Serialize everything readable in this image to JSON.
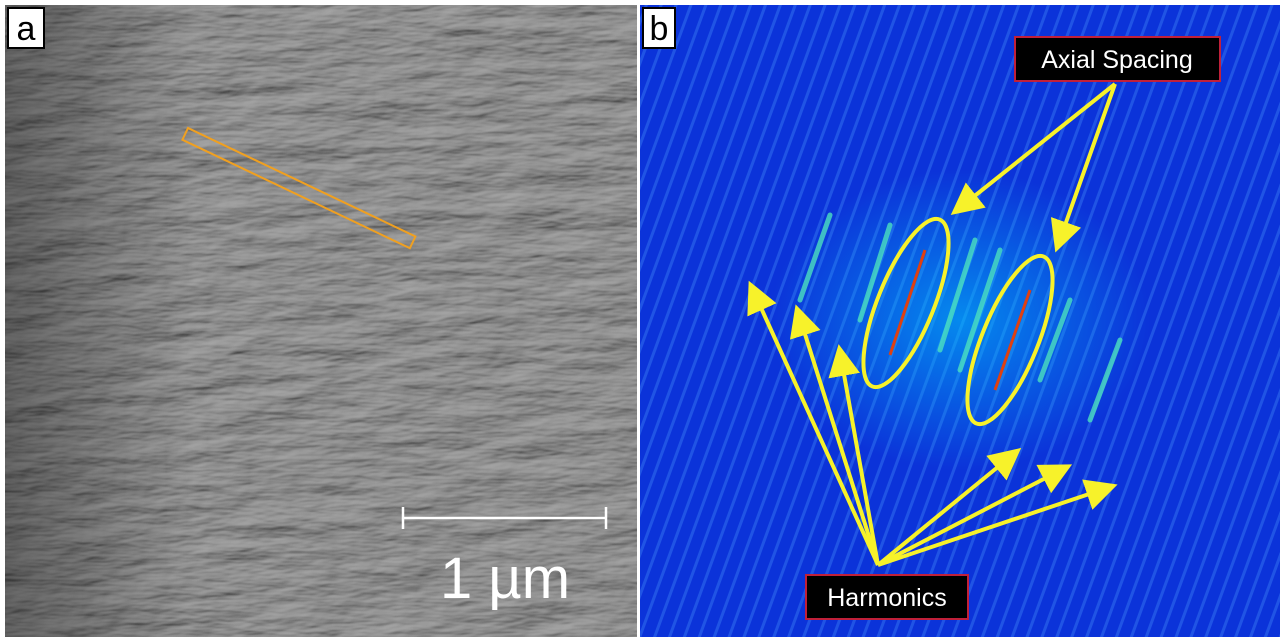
{
  "panels": [
    {
      "label": "a",
      "scale_bar": "1 µm"
    },
    {
      "label": "b",
      "annotations": [
        "Axial Spacing",
        "Harmonics"
      ]
    }
  ]
}
